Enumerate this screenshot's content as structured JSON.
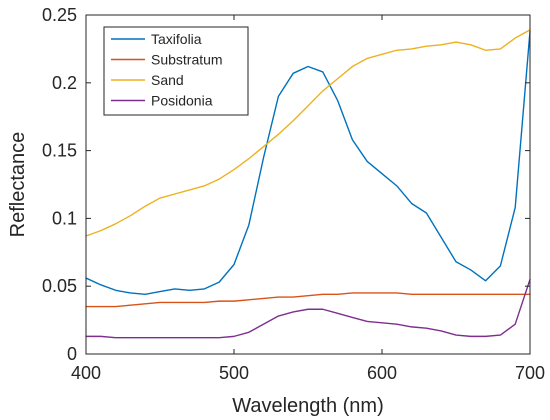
{
  "chart_data": {
    "type": "line",
    "title": "",
    "xlabel": "Wavelength (nm)",
    "ylabel": "Reflectance",
    "xlim": [
      400,
      700
    ],
    "ylim": [
      0,
      0.25
    ],
    "xticks": [
      400,
      500,
      600,
      700
    ],
    "xtick_labels": [
      "400",
      "500",
      "600",
      "700"
    ],
    "yticks": [
      0,
      0.05,
      0.1,
      0.15,
      0.2,
      0.25
    ],
    "ytick_labels": [
      "0",
      "0.05",
      "0.1",
      "0.15",
      "0.2",
      "0.25"
    ],
    "grid": false,
    "legend_position": "top-left",
    "series": [
      {
        "name": "Taxifolia",
        "color": "#0072BD",
        "x": [
          400,
          410,
          420,
          430,
          440,
          450,
          460,
          470,
          480,
          490,
          500,
          510,
          520,
          530,
          540,
          550,
          560,
          570,
          580,
          590,
          600,
          610,
          620,
          630,
          640,
          650,
          660,
          670,
          680,
          690,
          700
        ],
        "y": [
          0.056,
          0.051,
          0.047,
          0.045,
          0.044,
          0.046,
          0.048,
          0.047,
          0.048,
          0.053,
          0.066,
          0.095,
          0.145,
          0.19,
          0.207,
          0.212,
          0.208,
          0.187,
          0.158,
          0.142,
          0.133,
          0.124,
          0.111,
          0.104,
          0.086,
          0.068,
          0.062,
          0.054,
          0.065,
          0.108,
          0.238
        ]
      },
      {
        "name": "Substratum",
        "color": "#D95319",
        "x": [
          400,
          410,
          420,
          430,
          440,
          450,
          460,
          470,
          480,
          490,
          500,
          510,
          520,
          530,
          540,
          550,
          560,
          570,
          580,
          590,
          600,
          610,
          620,
          630,
          640,
          650,
          660,
          670,
          680,
          690,
          700
        ],
        "y": [
          0.035,
          0.035,
          0.035,
          0.036,
          0.037,
          0.038,
          0.038,
          0.038,
          0.038,
          0.039,
          0.039,
          0.04,
          0.041,
          0.042,
          0.042,
          0.043,
          0.044,
          0.044,
          0.045,
          0.045,
          0.045,
          0.045,
          0.044,
          0.044,
          0.044,
          0.044,
          0.044,
          0.044,
          0.044,
          0.044,
          0.044
        ]
      },
      {
        "name": "Sand",
        "color": "#EDB120",
        "x": [
          400,
          410,
          420,
          430,
          440,
          450,
          460,
          470,
          480,
          490,
          500,
          510,
          520,
          530,
          540,
          550,
          560,
          570,
          580,
          590,
          600,
          610,
          620,
          630,
          640,
          650,
          660,
          670,
          680,
          690,
          700
        ],
        "y": [
          0.087,
          0.091,
          0.096,
          0.102,
          0.109,
          0.115,
          0.118,
          0.121,
          0.124,
          0.129,
          0.136,
          0.144,
          0.153,
          0.162,
          0.172,
          0.183,
          0.194,
          0.203,
          0.212,
          0.218,
          0.221,
          0.224,
          0.225,
          0.227,
          0.228,
          0.23,
          0.228,
          0.224,
          0.225,
          0.233,
          0.239
        ]
      },
      {
        "name": "Posidonia",
        "color": "#7E2F8E",
        "x": [
          400,
          410,
          420,
          430,
          440,
          450,
          460,
          470,
          480,
          490,
          500,
          510,
          520,
          530,
          540,
          550,
          560,
          570,
          580,
          590,
          600,
          610,
          620,
          630,
          640,
          650,
          660,
          670,
          680,
          690,
          700
        ],
        "y": [
          0.013,
          0.013,
          0.012,
          0.012,
          0.012,
          0.012,
          0.012,
          0.012,
          0.012,
          0.012,
          0.013,
          0.016,
          0.022,
          0.028,
          0.031,
          0.033,
          0.033,
          0.03,
          0.027,
          0.024,
          0.023,
          0.022,
          0.02,
          0.019,
          0.017,
          0.014,
          0.013,
          0.013,
          0.014,
          0.022,
          0.055
        ]
      }
    ]
  }
}
